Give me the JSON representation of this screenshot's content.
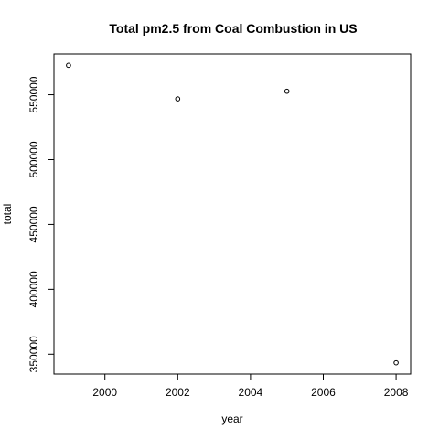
{
  "chart_data": {
    "type": "scatter",
    "title": "Total pm2.5 from Coal Combustion in US",
    "xlabel": "year",
    "ylabel": "total",
    "x": [
      1999,
      2002,
      2005,
      2008
    ],
    "y": [
      572700,
      546800,
      552700,
      343400
    ],
    "xlim": [
      1998.6,
      2008.4
    ],
    "ylim": [
      334700,
      581400
    ],
    "xticks": [
      "2000",
      "2002",
      "2004",
      "2006",
      "2008"
    ],
    "yticks": [
      "350000",
      "400000",
      "450000",
      "500000",
      "550000"
    ],
    "grid": false
  }
}
